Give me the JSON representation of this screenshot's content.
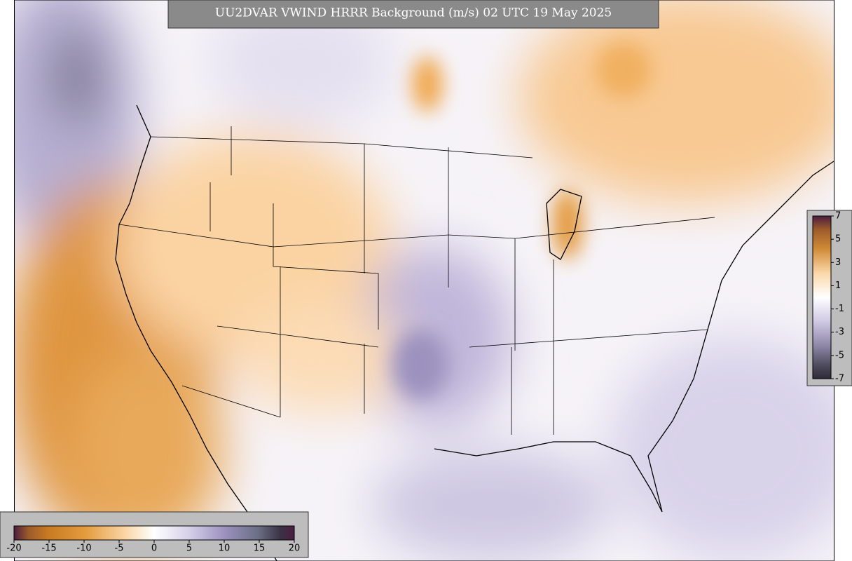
{
  "title": "UU2DVAR VWIND HRRR Background (m/s) 02 UTC 19 May 2025",
  "colorbar_main": {
    "ticks": [
      -20,
      -15,
      -10,
      -5,
      0,
      5,
      10,
      15,
      20
    ]
  },
  "colorbar_side": {
    "ticks": [
      7,
      5,
      3,
      1,
      -1,
      -3,
      -5,
      -7
    ]
  }
}
